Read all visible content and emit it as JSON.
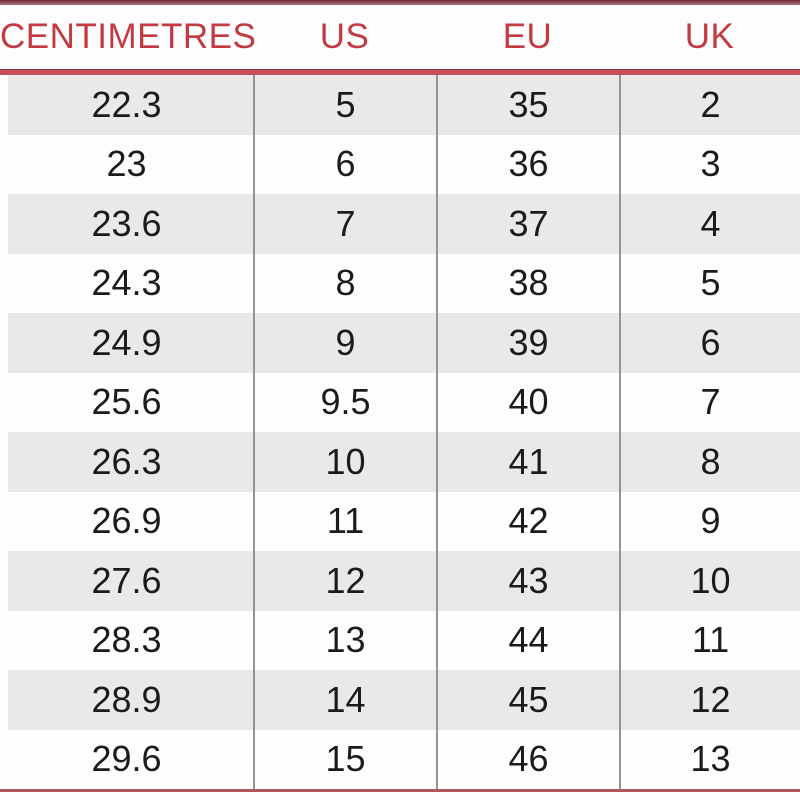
{
  "chart_data": {
    "type": "table",
    "columns": [
      "CENTIMETRES",
      "US",
      "EU",
      "UK"
    ],
    "rows": [
      [
        "22.3",
        "5",
        "35",
        "2"
      ],
      [
        "23",
        "6",
        "36",
        "3"
      ],
      [
        "23.6",
        "7",
        "37",
        "4"
      ],
      [
        "24.3",
        "8",
        "38",
        "5"
      ],
      [
        "24.9",
        "9",
        "39",
        "6"
      ],
      [
        "25.6",
        "9.5",
        "40",
        "7"
      ],
      [
        "26.3",
        "10",
        "41",
        "8"
      ],
      [
        "26.9",
        "11",
        "42",
        "9"
      ],
      [
        "27.6",
        "12",
        "43",
        "10"
      ],
      [
        "28.3",
        "13",
        "44",
        "11"
      ],
      [
        "28.9",
        "14",
        "45",
        "12"
      ],
      [
        "29.6",
        "15",
        "46",
        "13"
      ]
    ],
    "layout": {
      "legend": "none",
      "grid": "horizontal-stripes",
      "column_dividers": true
    }
  },
  "colors": {
    "header_text": "#c23b44",
    "header_rule": "#c4505a",
    "top_border": "#6e2a36",
    "bottom_border": "#b2565e",
    "row_stripe": "#e9e9e9",
    "column_divider": "#949494",
    "cell_text": "#1b1b1b",
    "background": "#fdfdfd"
  }
}
